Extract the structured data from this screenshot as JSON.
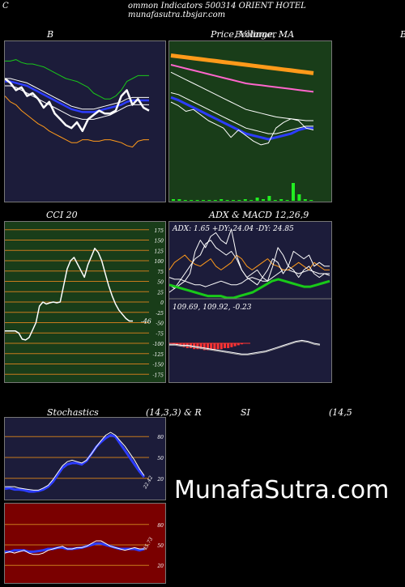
{
  "header": {
    "left": "C",
    "text": "ommon  Indicators 500314  ORIENT HOTEL munafasutra.tbsjar.com"
  },
  "titles": {
    "b": "B",
    "price": "Price,  Volume,  MA",
    "price_overlay": "Bollinger",
    "right_edge": "B",
    "cci": "CCI 20",
    "adx_macd": "ADX  & MACD 12,26,9",
    "stoch_left": "Stochastics",
    "stoch_mid": "(14,3,3) & R",
    "stoch_si": "SI",
    "stoch_right": "(14,5"
  },
  "watermark": "MunafaSutra.com",
  "colors": {
    "panel_dark": "#1c1c3a",
    "panel_green": "#193d19",
    "panel_red": "#7a0000",
    "grid_orange": "#c77a1c",
    "bb_green": "#19c919",
    "bb_blue": "#2c3cff",
    "ma_orange": "#ff9a1a",
    "ma_pink": "#ff66cc",
    "vol_green": "#22ee22"
  },
  "chart_data": [
    {
      "id": "bollinger",
      "type": "line",
      "title": "B",
      "series": [
        {
          "values": [
            92,
            92,
            93,
            91,
            90,
            90,
            89,
            88,
            86,
            84,
            82,
            80,
            79,
            78,
            76,
            74,
            70,
            68,
            66,
            66,
            68,
            72,
            78,
            80,
            82,
            82,
            82
          ]
        },
        {
          "values": [
            80,
            80,
            79,
            78,
            77,
            75,
            73,
            71,
            69,
            67,
            65,
            63,
            61,
            60,
            59,
            59,
            59,
            60,
            61,
            62,
            63,
            64,
            66,
            67,
            67,
            67,
            67
          ]
        },
        {
          "values": [
            78,
            78,
            77,
            76,
            75,
            73,
            71,
            69,
            67,
            65,
            63,
            61,
            59,
            58,
            57,
            57,
            57,
            58,
            59,
            60,
            61,
            62,
            64,
            65,
            65,
            65,
            65
          ]
        },
        {
          "values": [
            75,
            75,
            74,
            72,
            70,
            68,
            66,
            64,
            62,
            60,
            58,
            56,
            54,
            53,
            52,
            52,
            52,
            53,
            54,
            55,
            57,
            59,
            61,
            62,
            62,
            62,
            62
          ]
        },
        {
          "values": [
            68,
            64,
            62,
            58,
            55,
            52,
            49,
            47,
            44,
            42,
            40,
            38,
            36,
            36,
            38,
            38,
            37,
            37,
            38,
            38,
            37,
            36,
            34,
            33,
            37,
            38,
            38
          ]
        },
        {
          "values": [
            80,
            77,
            72,
            74,
            68,
            70,
            66,
            60,
            64,
            56,
            52,
            48,
            46,
            50,
            44,
            52,
            55,
            58,
            56,
            56,
            58,
            68,
            72,
            62,
            66,
            60,
            58
          ]
        }
      ]
    },
    {
      "id": "price_volume_ma",
      "type": "line",
      "title": "Price,  Volume,  MA",
      "series": [
        {
          "values": [
            150,
            149,
            148,
            147,
            146,
            145,
            144,
            143,
            142,
            141,
            140,
            139,
            138,
            137,
            136,
            135,
            134,
            133,
            132,
            131
          ]
        },
        {
          "values": [
            140,
            138,
            136,
            134,
            132,
            130,
            128,
            126,
            124,
            122,
            120,
            119,
            118,
            117,
            116,
            115,
            114,
            113,
            112,
            111
          ]
        },
        {
          "values": [
            132,
            128,
            124,
            120,
            116,
            112,
            108,
            104,
            100,
            96,
            92,
            90,
            88,
            86,
            84,
            83,
            82,
            81,
            80,
            80
          ]
        },
        {
          "values": [
            110,
            108,
            104,
            100,
            96,
            92,
            88,
            84,
            80,
            76,
            72,
            70,
            68,
            66,
            66,
            68,
            70,
            72,
            74,
            74
          ]
        },
        {
          "values": [
            105,
            102,
            98,
            94,
            90,
            86,
            82,
            78,
            74,
            70,
            66,
            64,
            62,
            60,
            62,
            64,
            66,
            70,
            72,
            72
          ]
        },
        {
          "values": [
            100,
            96,
            90,
            92,
            86,
            80,
            76,
            72,
            62,
            70,
            64,
            58,
            54,
            56,
            72,
            78,
            82,
            80,
            72,
            70
          ]
        }
      ],
      "volume": [
        2,
        2,
        1,
        1,
        1,
        1,
        1,
        1,
        2,
        1,
        1,
        1,
        2,
        1,
        4,
        2,
        6,
        1,
        2,
        1,
        22,
        8,
        2,
        1
      ]
    },
    {
      "id": "cci",
      "type": "line",
      "title": "CCI 20",
      "ylim": [
        -175,
        175
      ],
      "yticks": [
        175,
        150,
        125,
        100,
        75,
        50,
        25,
        0,
        -25,
        -50,
        -75,
        -100,
        -125,
        -150,
        -175
      ],
      "series": [
        {
          "values": [
            -70,
            -70,
            -70,
            -70,
            -75,
            -90,
            -92,
            -86,
            -68,
            -50,
            -10,
            0,
            -5,
            -2,
            0,
            -2,
            0,
            40,
            80,
            100,
            108,
            92,
            76,
            60,
            90,
            110,
            130,
            120,
            100,
            70,
            40,
            15,
            -5,
            -20,
            -30,
            -40,
            -46,
            -46
          ]
        }
      ],
      "last_label": "-46"
    },
    {
      "id": "adx",
      "type": "line",
      "title": "ADX: 1.65 +DY: 24.04  -DY: 24.85",
      "series": [
        {
          "values": [
            18,
            17,
            17,
            16,
            15,
            14,
            14,
            13,
            14,
            15,
            16,
            15,
            14,
            14,
            15,
            17,
            18,
            17,
            16,
            16,
            18,
            20,
            22,
            22,
            21,
            20,
            21,
            22,
            21,
            20,
            20,
            19
          ]
        },
        {
          "values": [
            22,
            26,
            28,
            30,
            27,
            25,
            24,
            26,
            28,
            24,
            22,
            24,
            26,
            30,
            28,
            24,
            22,
            24,
            26,
            28,
            25,
            24,
            22,
            22,
            24,
            26,
            24,
            22,
            26,
            24,
            22,
            22
          ]
        },
        {
          "values": [
            14,
            12,
            14,
            16,
            20,
            32,
            38,
            34,
            40,
            42,
            38,
            36,
            44,
            30,
            22,
            18,
            20,
            22,
            18,
            16,
            24,
            34,
            30,
            24,
            32,
            30,
            28,
            30,
            24,
            26,
            24,
            24
          ]
        },
        {
          "values": [
            10,
            12,
            16,
            20,
            24,
            28,
            30,
            36,
            38,
            34,
            32,
            30,
            32,
            28,
            22,
            18,
            16,
            14,
            18,
            22,
            28,
            26,
            20,
            24,
            22,
            18,
            22,
            24,
            20,
            18,
            20,
            20
          ]
        }
      ]
    },
    {
      "id": "macd",
      "type": "line",
      "title": "109.69,  109.92,  -0.23",
      "series": [
        {
          "values": [
            -0.1,
            -0.1,
            -0.2,
            -0.2,
            -0.3,
            -0.4,
            -0.5,
            -0.6,
            -0.7,
            -0.8,
            -0.9,
            -1.0,
            -1.1,
            -1.1,
            -1.0,
            -0.9,
            -0.8,
            -0.6,
            -0.4,
            -0.2,
            0.0,
            0.2,
            0.3,
            0.2,
            0.0,
            -0.1
          ]
        },
        {
          "values": [
            -0.2,
            -0.2,
            -0.3,
            -0.3,
            -0.4,
            -0.5,
            -0.6,
            -0.7,
            -0.8,
            -0.9,
            -1.0,
            -1.1,
            -1.2,
            -1.2,
            -1.1,
            -1.0,
            -0.9,
            -0.7,
            -0.5,
            -0.3,
            -0.1,
            0.1,
            0.2,
            0.1,
            -0.1,
            -0.2
          ]
        }
      ],
      "histogram": [
        -0.1,
        -0.2,
        -0.3,
        -0.4,
        -0.5,
        -0.5,
        -0.6,
        -0.6,
        -0.6,
        -0.7,
        -0.7,
        -0.7,
        -0.7,
        -0.6,
        -0.6,
        -0.5,
        -0.5,
        -0.4,
        -0.3,
        -0.2,
        -0.1
      ]
    },
    {
      "id": "stochastics",
      "type": "line",
      "title": "Stochastics",
      "ylim": [
        0,
        100
      ],
      "yticks": [
        80,
        50,
        20
      ],
      "series": [
        {
          "values": [
            5,
            6,
            4,
            4,
            3,
            1,
            1,
            2,
            4,
            8,
            15,
            25,
            35,
            40,
            42,
            42,
            40,
            45,
            55,
            65,
            72,
            78,
            82,
            80,
            70,
            60,
            50,
            40,
            30,
            22
          ]
        },
        {
          "values": [
            8,
            8,
            8,
            6,
            5,
            4,
            3,
            3,
            6,
            10,
            18,
            28,
            38,
            44,
            46,
            44,
            42,
            46,
            55,
            65,
            74,
            82,
            86,
            82,
            74,
            66,
            56,
            46,
            34,
            24
          ]
        }
      ],
      "last_label": "22.42"
    },
    {
      "id": "rsi",
      "type": "line",
      "title": "SI",
      "ylim": [
        0,
        100
      ],
      "yticks": [
        80,
        50,
        20
      ],
      "series": [
        {
          "values": [
            40,
            40,
            42,
            42,
            42,
            40,
            40,
            41,
            42,
            44,
            44,
            46,
            46,
            44,
            44,
            45,
            46,
            48,
            50,
            52,
            52,
            50,
            48,
            46,
            44,
            44,
            44,
            44,
            42,
            44
          ]
        },
        {
          "values": [
            38,
            40,
            38,
            40,
            42,
            38,
            36,
            36,
            38,
            42,
            44,
            46,
            48,
            44,
            44,
            46,
            46,
            48,
            52,
            56,
            56,
            52,
            48,
            46,
            44,
            42,
            44,
            46,
            44,
            44
          ]
        }
      ],
      "last_label": "45.73"
    }
  ]
}
